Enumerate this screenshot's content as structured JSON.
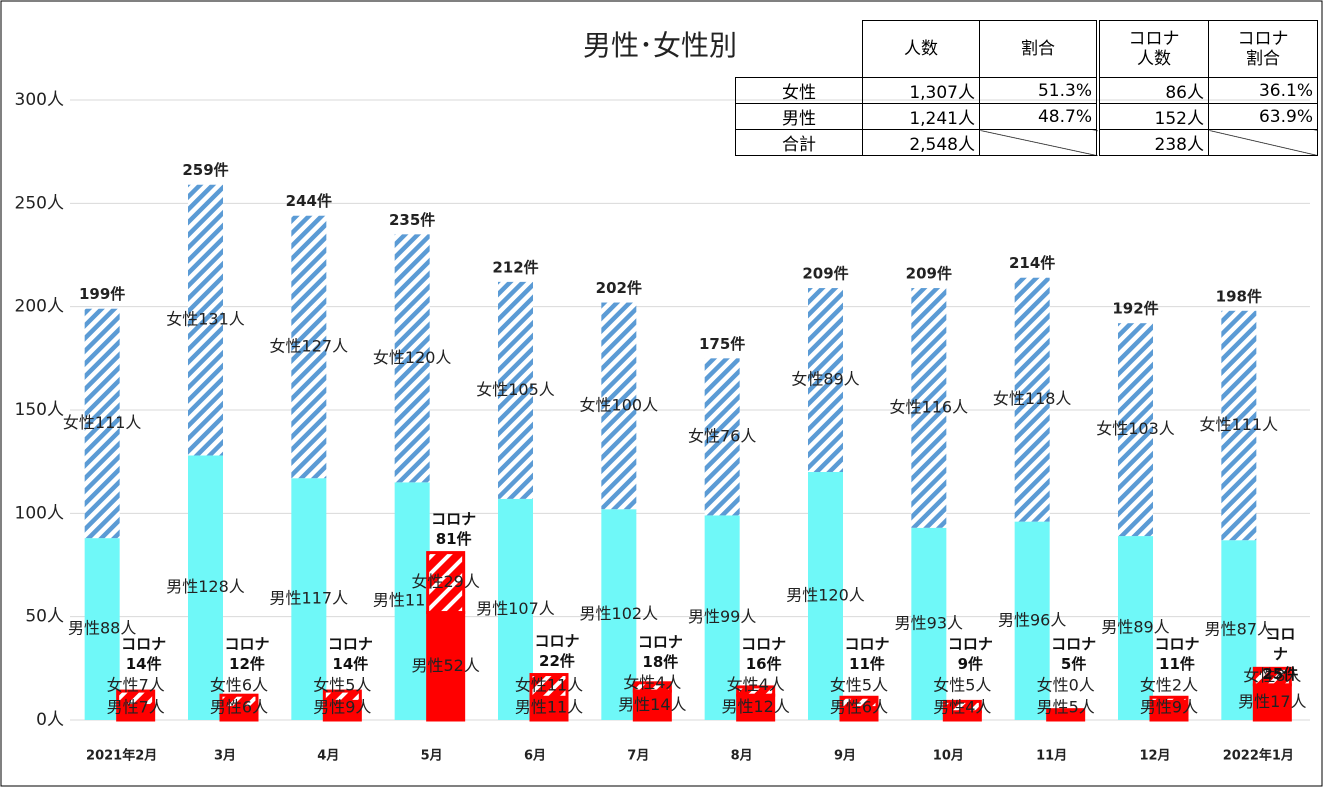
{
  "chart_data": {
    "type": "bar",
    "title": "男性･女性別",
    "categories": [
      "2021年2月",
      "3月",
      "4月",
      "5月",
      "6月",
      "7月",
      "8月",
      "9月",
      "10月",
      "11月",
      "12月",
      "2022年1月"
    ],
    "ylim": [
      0,
      300
    ],
    "yticks": [
      {
        "value": 0,
        "label": "0人"
      },
      {
        "value": 50,
        "label": "50人"
      },
      {
        "value": 100,
        "label": "100人"
      },
      {
        "value": 150,
        "label": "150人"
      },
      {
        "value": 200,
        "label": "200人"
      },
      {
        "value": 250,
        "label": "250人"
      },
      {
        "value": 300,
        "label": "300人"
      }
    ],
    "grid": true,
    "series": [
      {
        "color": "#6ff8f8",
        "values": [
          88,
          128,
          117,
          115,
          107,
          102,
          99,
          120,
          93,
          96,
          89,
          87
        ],
        "value_labels": [
          "男性88人",
          "男性128人",
          "男性117人",
          "男性115人",
          "男性107人",
          "男性102人",
          "男性99人",
          "男性120人",
          "男性93人",
          "男性96人",
          "男性89人",
          "男性87人"
        ]
      },
      {
        "color": "#5b9bd5",
        "pattern": "hatch",
        "values": [
          111,
          131,
          127,
          120,
          105,
          100,
          76,
          89,
          116,
          118,
          103,
          111
        ],
        "value_labels": [
          "女性111人",
          "女性131人",
          "女性127人",
          "女性120人",
          "女性105人",
          "女性100人",
          "女性76人",
          "女性89人",
          "女性116人",
          "女性118人",
          "女性103人",
          "女性111人"
        ]
      }
    ],
    "totals": {
      "values": [
        199,
        259,
        244,
        235,
        212,
        202,
        175,
        209,
        209,
        214,
        192,
        198
      ],
      "value_labels": [
        "199件",
        "259件",
        "244件",
        "235件",
        "212件",
        "202件",
        "175件",
        "209件",
        "209件",
        "214件",
        "192件",
        "198件"
      ]
    },
    "corona_series": [
      {
        "color": "#ff0000",
        "values": [
          7,
          6,
          9,
          52,
          11,
          14,
          12,
          6,
          4,
          5,
          9,
          17
        ],
        "value_labels": [
          "男性7人",
          "男性6人",
          "男性9人",
          "男性52人",
          "男性11人",
          "男性14人",
          "男性12人",
          "男性6人",
          "男性4人",
          "男性5人",
          "男性9人",
          "男性17人"
        ]
      },
      {
        "color": "#ff0000",
        "pattern": "hatch",
        "values": [
          7,
          6,
          5,
          29,
          11,
          4,
          4,
          5,
          5,
          0,
          2,
          8
        ],
        "value_labels": [
          "女性7人",
          "女性6人",
          "女性5人",
          "女性29人",
          "女性11人",
          "女性4人",
          "女性4人",
          "女性5人",
          "女性5人",
          "女性0人",
          "女性2人",
          "女性8人"
        ]
      }
    ],
    "corona_totals": {
      "values": [
        14,
        12,
        14,
        81,
        22,
        18,
        16,
        11,
        9,
        5,
        11,
        25
      ],
      "value_labels": [
        "コロナ\n14件",
        "コロナ\n12件",
        "コロナ\n14件",
        "コロナ\n81件",
        "コロナ\n22件",
        "コロナ\n18件",
        "コロナ\n16件",
        "コロナ\n11件",
        "コロナ\n9件",
        "コロナ\n5件",
        "コロナ\n11件",
        "コロナ\n25件"
      ]
    }
  },
  "table": {
    "header": [
      "人数",
      "割合",
      "コロナ\n人数",
      "コロナ\n割合"
    ],
    "rows": [
      [
        "女性",
        "1,307人",
        "51.3%",
        "86人",
        "36.1%"
      ],
      [
        "男性",
        "1,241人",
        "48.7%",
        "152人",
        "63.9%"
      ],
      [
        "合計",
        "2,548人",
        null,
        "238人",
        null
      ]
    ]
  }
}
